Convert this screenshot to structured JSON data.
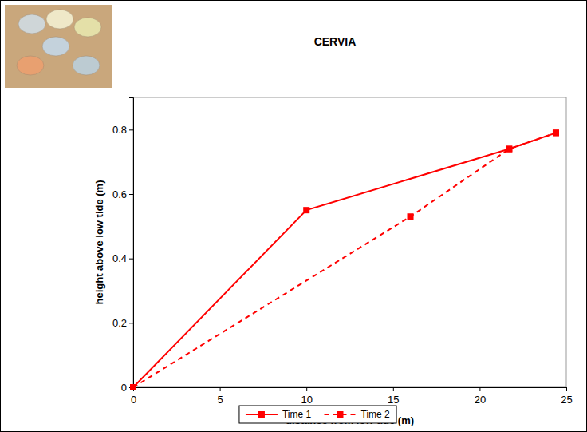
{
  "chart_data": {
    "type": "line",
    "title": "CERVIA",
    "x_label": "distance from low tide (m)",
    "y_label": "height above low tide (m)",
    "series": [
      {
        "name": "Time 1",
        "color": "#ff0000",
        "marker": "square",
        "line_style": "solid",
        "x": [
          0,
          10,
          21.7,
          24.4
        ],
        "values": [
          0,
          0.55,
          0.74,
          0.79
        ]
      },
      {
        "name": "Time 2",
        "color": "#ff0000",
        "marker": "square",
        "line_style": "dashed",
        "x": [
          0,
          16,
          21.7,
          24.4
        ],
        "values": [
          0,
          0.53,
          0.74,
          0.79
        ]
      }
    ],
    "xlim": [
      0,
      25
    ],
    "xticks": [
      0,
      5,
      10,
      15,
      20,
      25
    ],
    "ylim": [
      0,
      0.9
    ],
    "yticks": [
      0,
      0.2,
      0.4,
      0.6,
      0.8
    ],
    "grid": false,
    "legend": "bottom"
  }
}
